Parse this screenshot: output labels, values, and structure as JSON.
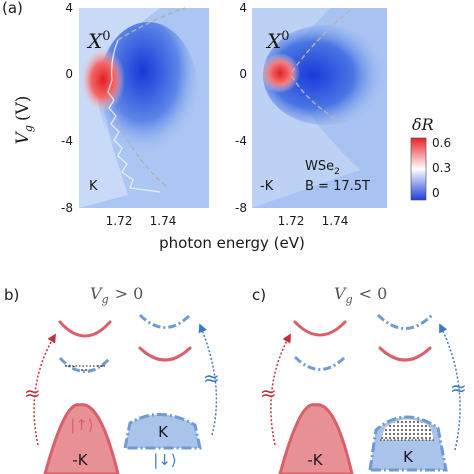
{
  "panel_labels": {
    "a": "(a)",
    "b": "b)",
    "c": "c)"
  },
  "panel_a": {
    "ylabel_main": "V",
    "ylabel_sub": "g",
    "ylabel_unit": "(V)",
    "xlabel": "photon energy (eV)",
    "left_map": {
      "yticks": [
        "4",
        "0",
        "-4",
        "-8"
      ],
      "xticks": [
        "1.72",
        "1.74"
      ],
      "peak_label_main": "X",
      "peak_label_sup": "0",
      "valley_label": "K"
    },
    "right_map": {
      "yticks": [
        "4",
        "0",
        "-4",
        "-8"
      ],
      "xticks": [
        "1.72",
        "1.74"
      ],
      "peak_label_main": "X",
      "peak_label_sup": "0",
      "valley_label": "-K",
      "material_main": "WSe",
      "material_sub": "2",
      "field": "B = 17.5T"
    },
    "colorbar": {
      "title": "δR",
      "ticks": [
        "0.6",
        "0.3",
        "0"
      ],
      "colors": {
        "high": "#e8222a",
        "mid": "#ffffff",
        "low": "#1f3fdc"
      }
    }
  },
  "panel_b": {
    "title_main": "V",
    "title_sub": "g",
    "title_rel": "> 0",
    "spin_up_label": "|↑⟩",
    "spin_down_label": "|↓⟩",
    "valley_left": "-K",
    "valley_right": "K",
    "approx": "≈"
  },
  "panel_c": {
    "title_main": "V",
    "title_sub": "g",
    "title_rel": "< 0",
    "valley_left": "-K",
    "valley_right": "K",
    "approx": "≈"
  },
  "colors": {
    "red": "#d9606a",
    "red_fill": "#e79096",
    "blue": "#6f9bd1",
    "blue_fill": "#a9c3ea"
  }
}
